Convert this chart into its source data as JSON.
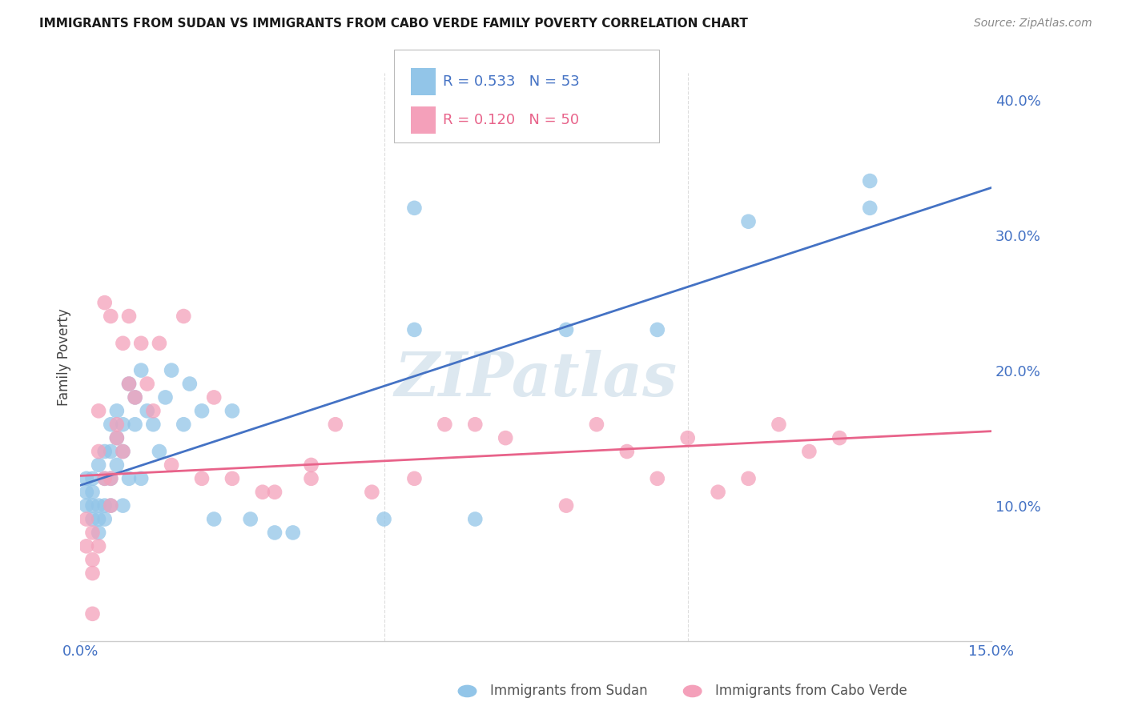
{
  "title": "IMMIGRANTS FROM SUDAN VS IMMIGRANTS FROM CABO VERDE FAMILY POVERTY CORRELATION CHART",
  "source": "Source: ZipAtlas.com",
  "xlabel_sudan": "Immigrants from Sudan",
  "xlabel_caboverde": "Immigrants from Cabo Verde",
  "ylabel": "Family Poverty",
  "xlim": [
    0.0,
    0.15
  ],
  "ylim": [
    0.0,
    0.42
  ],
  "ytick_vals": [
    0.1,
    0.2,
    0.3,
    0.4
  ],
  "ytick_labels_right": [
    "10.0%",
    "20.0%",
    "30.0%",
    "40.0%"
  ],
  "sudan_R": 0.533,
  "sudan_N": 53,
  "caboverde_R": 0.12,
  "caboverde_N": 50,
  "sudan_color": "#92C5E8",
  "caboverde_color": "#F4A0BA",
  "sudan_line_color": "#4472C4",
  "caboverde_line_color": "#E8638A",
  "sudan_line_y0": 0.115,
  "sudan_line_y1": 0.335,
  "caboverde_line_y0": 0.122,
  "caboverde_line_y1": 0.155,
  "sudan_x": [
    0.001,
    0.001,
    0.001,
    0.002,
    0.002,
    0.002,
    0.002,
    0.003,
    0.003,
    0.003,
    0.003,
    0.004,
    0.004,
    0.004,
    0.004,
    0.005,
    0.005,
    0.005,
    0.005,
    0.006,
    0.006,
    0.006,
    0.007,
    0.007,
    0.007,
    0.008,
    0.008,
    0.009,
    0.009,
    0.01,
    0.01,
    0.011,
    0.012,
    0.013,
    0.014,
    0.015,
    0.017,
    0.018,
    0.02,
    0.022,
    0.025,
    0.028,
    0.032,
    0.035,
    0.05,
    0.055,
    0.065,
    0.08,
    0.095,
    0.11,
    0.13,
    0.13,
    0.055
  ],
  "sudan_y": [
    0.1,
    0.11,
    0.12,
    0.09,
    0.1,
    0.11,
    0.12,
    0.08,
    0.09,
    0.1,
    0.13,
    0.09,
    0.1,
    0.12,
    0.14,
    0.1,
    0.12,
    0.14,
    0.16,
    0.13,
    0.15,
    0.17,
    0.1,
    0.14,
    0.16,
    0.12,
    0.19,
    0.16,
    0.18,
    0.12,
    0.2,
    0.17,
    0.16,
    0.14,
    0.18,
    0.2,
    0.16,
    0.19,
    0.17,
    0.09,
    0.17,
    0.09,
    0.08,
    0.08,
    0.09,
    0.23,
    0.09,
    0.23,
    0.23,
    0.31,
    0.32,
    0.34,
    0.32
  ],
  "caboverde_x": [
    0.001,
    0.001,
    0.002,
    0.002,
    0.002,
    0.003,
    0.003,
    0.003,
    0.004,
    0.004,
    0.005,
    0.005,
    0.005,
    0.006,
    0.006,
    0.007,
    0.007,
    0.008,
    0.008,
    0.009,
    0.01,
    0.011,
    0.012,
    0.013,
    0.015,
    0.017,
    0.02,
    0.022,
    0.025,
    0.03,
    0.032,
    0.038,
    0.042,
    0.048,
    0.055,
    0.06,
    0.065,
    0.07,
    0.08,
    0.085,
    0.09,
    0.095,
    0.1,
    0.105,
    0.11,
    0.115,
    0.12,
    0.125,
    0.038,
    0.002
  ],
  "caboverde_y": [
    0.07,
    0.09,
    0.06,
    0.08,
    0.05,
    0.07,
    0.14,
    0.17,
    0.12,
    0.25,
    0.1,
    0.12,
    0.24,
    0.15,
    0.16,
    0.14,
    0.22,
    0.19,
    0.24,
    0.18,
    0.22,
    0.19,
    0.17,
    0.22,
    0.13,
    0.24,
    0.12,
    0.18,
    0.12,
    0.11,
    0.11,
    0.12,
    0.16,
    0.11,
    0.12,
    0.16,
    0.16,
    0.15,
    0.1,
    0.16,
    0.14,
    0.12,
    0.15,
    0.11,
    0.12,
    0.16,
    0.14,
    0.15,
    0.13,
    0.02
  ],
  "watermark": "ZIPatlas",
  "background_color": "#FFFFFF",
  "grid_color": "#DDDDDD"
}
